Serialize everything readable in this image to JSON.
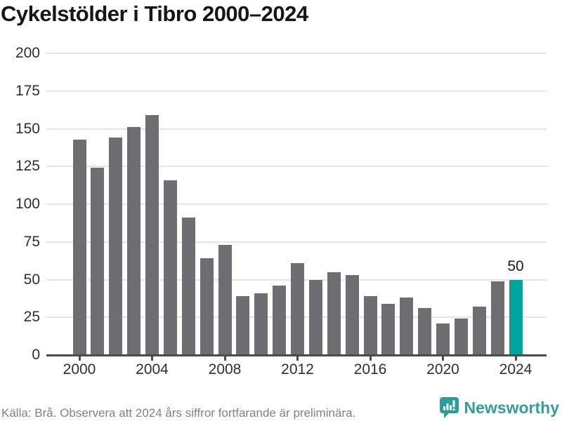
{
  "chart_data": {
    "type": "bar",
    "title": "Cykelstölder i Tibro 2000–2024",
    "categories": [
      2000,
      2001,
      2002,
      2003,
      2004,
      2005,
      2006,
      2007,
      2008,
      2009,
      2010,
      2011,
      2012,
      2013,
      2014,
      2015,
      2016,
      2017,
      2018,
      2019,
      2020,
      2021,
      2022,
      2023,
      2024
    ],
    "values": [
      143,
      124,
      144,
      151,
      159,
      116,
      91,
      64,
      73,
      39,
      41,
      46,
      61,
      50,
      55,
      53,
      39,
      34,
      38,
      31,
      21,
      24,
      32,
      49,
      50
    ],
    "highlight": {
      "year": 2024,
      "value": 50,
      "label": "50",
      "color": "#00a49c"
    },
    "bar_color": "#6e6d72",
    "ylim": [
      0,
      200
    ],
    "yticks": [
      0,
      25,
      50,
      75,
      100,
      125,
      150,
      175,
      200
    ],
    "xticks": [
      2000,
      2004,
      2008,
      2012,
      2016,
      2020,
      2024
    ],
    "grid": true,
    "legend_position": "none",
    "xlabel": "",
    "ylabel": ""
  },
  "footer": {
    "source_text": "Källa: Brå. Observera att 2024 års siffror fortfarande är preliminära.",
    "brand": "Newsworthy",
    "brand_color": "#359d98"
  },
  "colors": {
    "background": "#ffffff",
    "title": "#161613",
    "bar": "#6e6d72",
    "highlight": "#00a49c",
    "gridline": "#e4e4e4",
    "axis": "#4a4a4f",
    "tick_label": "#2e2e2e",
    "footer_text": "#818181"
  }
}
